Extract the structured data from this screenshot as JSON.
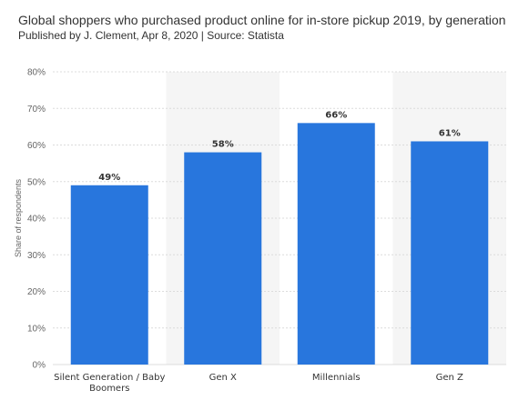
{
  "header": {
    "title": "Global shoppers who purchased product online for in-store pickup 2019, by generation",
    "subtitle": "Published by J. Clement, Apr 8, 2020 | Source: Statista"
  },
  "colors": {
    "bar": "#2876dd",
    "band": "#f5f5f5",
    "grid": "#dcdcdc"
  },
  "chart_data": {
    "type": "bar",
    "categories": [
      "Silent Generation / Baby Boomers",
      "Gen X",
      "Millennials",
      "Gen Z"
    ],
    "category_lines": [
      [
        "Silent Generation / Baby",
        "Boomers"
      ],
      [
        "Gen X"
      ],
      [
        "Millennials"
      ],
      [
        "Gen Z"
      ]
    ],
    "values": [
      49,
      58,
      66,
      61
    ],
    "value_labels": [
      "49%",
      "58%",
      "66%",
      "61%"
    ],
    "ylabel": "Share of respondents",
    "ylim": [
      0,
      80
    ],
    "yticks": [
      0,
      10,
      20,
      30,
      40,
      50,
      60,
      70,
      80
    ],
    "ytick_labels": [
      "0%",
      "10%",
      "20%",
      "30%",
      "40%",
      "50%",
      "60%",
      "70%",
      "80%"
    ],
    "grid": true,
    "alternating_bands": true
  }
}
